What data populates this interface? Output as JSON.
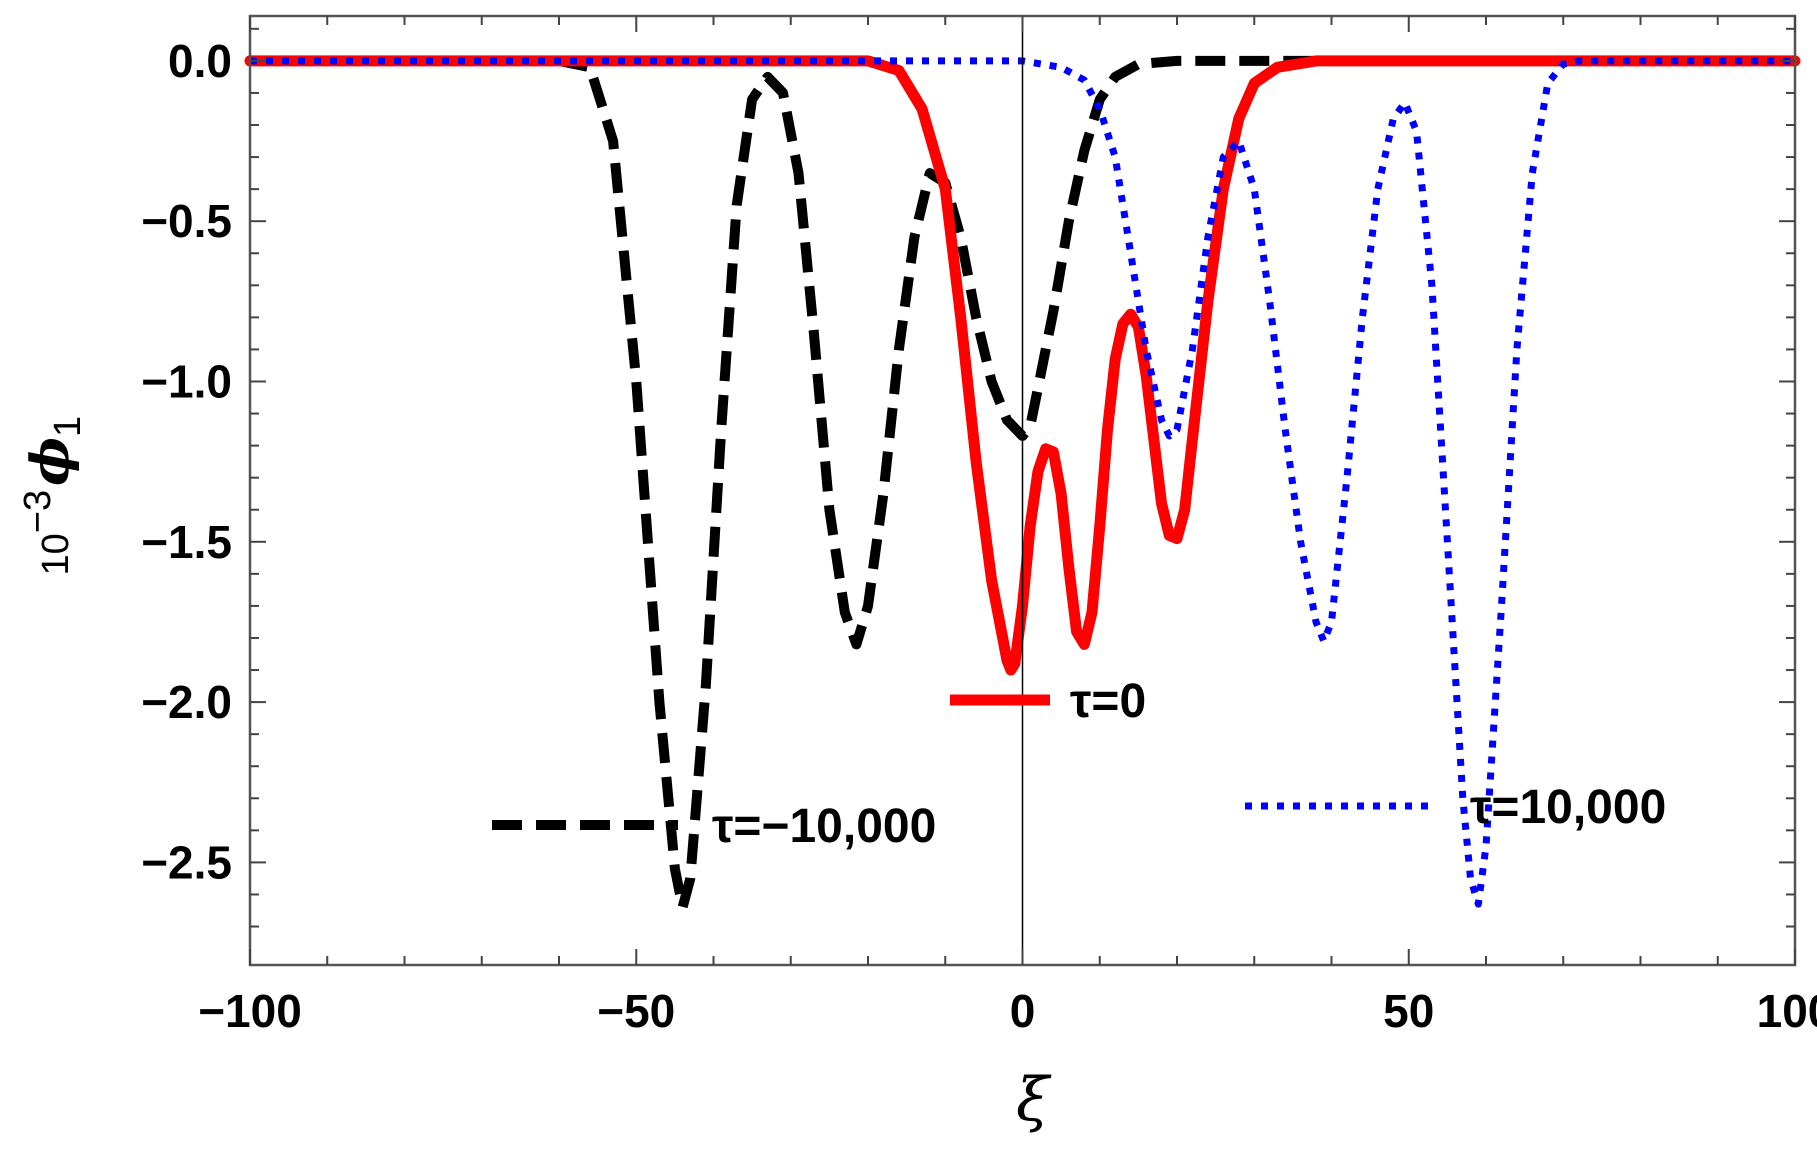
{
  "chart_data": {
    "type": "line",
    "xlabel": "ξ",
    "ylabel": {
      "prefix": "10",
      "exponent": "−3",
      "symbol": "ϕ",
      "subscript": "1"
    },
    "xlim": [
      -100,
      100
    ],
    "ylim": [
      -2.82,
      0.14
    ],
    "x_ticks": [
      -100,
      -50,
      0,
      50,
      100
    ],
    "x_tick_labels": [
      "−100",
      "−50",
      "0",
      "50",
      "100"
    ],
    "y_ticks": [
      0.0,
      -0.5,
      -1.0,
      -1.5,
      -2.0,
      -2.5
    ],
    "y_tick_labels": [
      "0.0",
      "−0.5",
      "−1.0",
      "−1.5",
      "−2.0",
      "−2.5"
    ],
    "grid": false,
    "series": [
      {
        "name": "τ=−10,000",
        "style": "dashed",
        "color": "#000000",
        "points": [
          [
            -100,
            0
          ],
          [
            -60,
            0
          ],
          [
            -56,
            -0.02
          ],
          [
            -53,
            -0.25
          ],
          [
            -50,
            -1.0
          ],
          [
            -47,
            -2.0
          ],
          [
            -45,
            -2.52
          ],
          [
            -44,
            -2.64
          ],
          [
            -43,
            -2.55
          ],
          [
            -41,
            -1.95
          ],
          [
            -39,
            -1.15
          ],
          [
            -37,
            -0.45
          ],
          [
            -35,
            -0.12
          ],
          [
            -33,
            -0.05
          ],
          [
            -31,
            -0.1
          ],
          [
            -29,
            -0.35
          ],
          [
            -27,
            -0.85
          ],
          [
            -25,
            -1.4
          ],
          [
            -23,
            -1.72
          ],
          [
            -21.5,
            -1.82
          ],
          [
            -20,
            -1.7
          ],
          [
            -18,
            -1.35
          ],
          [
            -16,
            -0.9
          ],
          [
            -14,
            -0.55
          ],
          [
            -12,
            -0.35
          ],
          [
            -10,
            -0.38
          ],
          [
            -8,
            -0.55
          ],
          [
            -6,
            -0.8
          ],
          [
            -4,
            -1.0
          ],
          [
            -2,
            -1.12
          ],
          [
            0,
            -1.17
          ],
          [
            1,
            -1.14
          ],
          [
            2,
            -1.02
          ],
          [
            4,
            -0.78
          ],
          [
            6,
            -0.5
          ],
          [
            8,
            -0.28
          ],
          [
            10,
            -0.12
          ],
          [
            12,
            -0.05
          ],
          [
            15,
            -0.01
          ],
          [
            20,
            0
          ],
          [
            40,
            0
          ]
        ]
      },
      {
        "name": "τ=0",
        "style": "solid",
        "color": "#ff0000",
        "points": [
          [
            -100,
            0
          ],
          [
            -20,
            0
          ],
          [
            -16,
            -0.03
          ],
          [
            -13,
            -0.15
          ],
          [
            -10,
            -0.4
          ],
          [
            -8,
            -0.8
          ],
          [
            -6,
            -1.25
          ],
          [
            -4,
            -1.62
          ],
          [
            -2,
            -1.87
          ],
          [
            -1.5,
            -1.9
          ],
          [
            -1,
            -1.88
          ],
          [
            0,
            -1.7
          ],
          [
            1,
            -1.45
          ],
          [
            2,
            -1.28
          ],
          [
            3,
            -1.21
          ],
          [
            4,
            -1.22
          ],
          [
            5,
            -1.35
          ],
          [
            6,
            -1.58
          ],
          [
            7,
            -1.78
          ],
          [
            8,
            -1.82
          ],
          [
            9,
            -1.72
          ],
          [
            10,
            -1.45
          ],
          [
            11,
            -1.15
          ],
          [
            12,
            -0.93
          ],
          [
            13,
            -0.82
          ],
          [
            14,
            -0.79
          ],
          [
            15,
            -0.83
          ],
          [
            16,
            -0.98
          ],
          [
            17,
            -1.18
          ],
          [
            18,
            -1.38
          ],
          [
            19,
            -1.48
          ],
          [
            20,
            -1.49
          ],
          [
            21,
            -1.4
          ],
          [
            22,
            -1.18
          ],
          [
            24,
            -0.75
          ],
          [
            26,
            -0.4
          ],
          [
            28,
            -0.18
          ],
          [
            30,
            -0.07
          ],
          [
            33,
            -0.02
          ],
          [
            38,
            0
          ],
          [
            100,
            0
          ]
        ]
      },
      {
        "name": "τ=10,000",
        "style": "dotted",
        "color": "#0000ff",
        "points": [
          [
            -100,
            0
          ],
          [
            0,
            0
          ],
          [
            5,
            -0.02
          ],
          [
            8,
            -0.06
          ],
          [
            10,
            -0.15
          ],
          [
            12,
            -0.3
          ],
          [
            14,
            -0.6
          ],
          [
            16,
            -0.9
          ],
          [
            18,
            -1.12
          ],
          [
            19,
            -1.17
          ],
          [
            20,
            -1.15
          ],
          [
            22,
            -0.9
          ],
          [
            24,
            -0.55
          ],
          [
            26,
            -0.3
          ],
          [
            28,
            -0.25
          ],
          [
            30,
            -0.4
          ],
          [
            32,
            -0.75
          ],
          [
            34,
            -1.15
          ],
          [
            36,
            -1.5
          ],
          [
            38,
            -1.75
          ],
          [
            39,
            -1.81
          ],
          [
            40,
            -1.75
          ],
          [
            42,
            -1.3
          ],
          [
            44,
            -0.8
          ],
          [
            46,
            -0.4
          ],
          [
            48,
            -0.18
          ],
          [
            49.5,
            -0.13
          ],
          [
            51,
            -0.22
          ],
          [
            53,
            -0.7
          ],
          [
            55,
            -1.5
          ],
          [
            57,
            -2.3
          ],
          [
            58,
            -2.55
          ],
          [
            59,
            -2.63
          ],
          [
            60,
            -2.45
          ],
          [
            62,
            -1.7
          ],
          [
            64,
            -0.9
          ],
          [
            66,
            -0.35
          ],
          [
            68,
            -0.07
          ],
          [
            70,
            -0.01
          ],
          [
            72,
            0
          ],
          [
            100,
            0
          ]
        ]
      }
    ],
    "legend": [
      {
        "series": 1,
        "label": "τ=0",
        "placement": "center"
      },
      {
        "series": 0,
        "label": "τ=−10,000",
        "placement": "bottom-left"
      },
      {
        "series": 2,
        "label": "τ=10,000",
        "placement": "bottom-right"
      }
    ]
  }
}
